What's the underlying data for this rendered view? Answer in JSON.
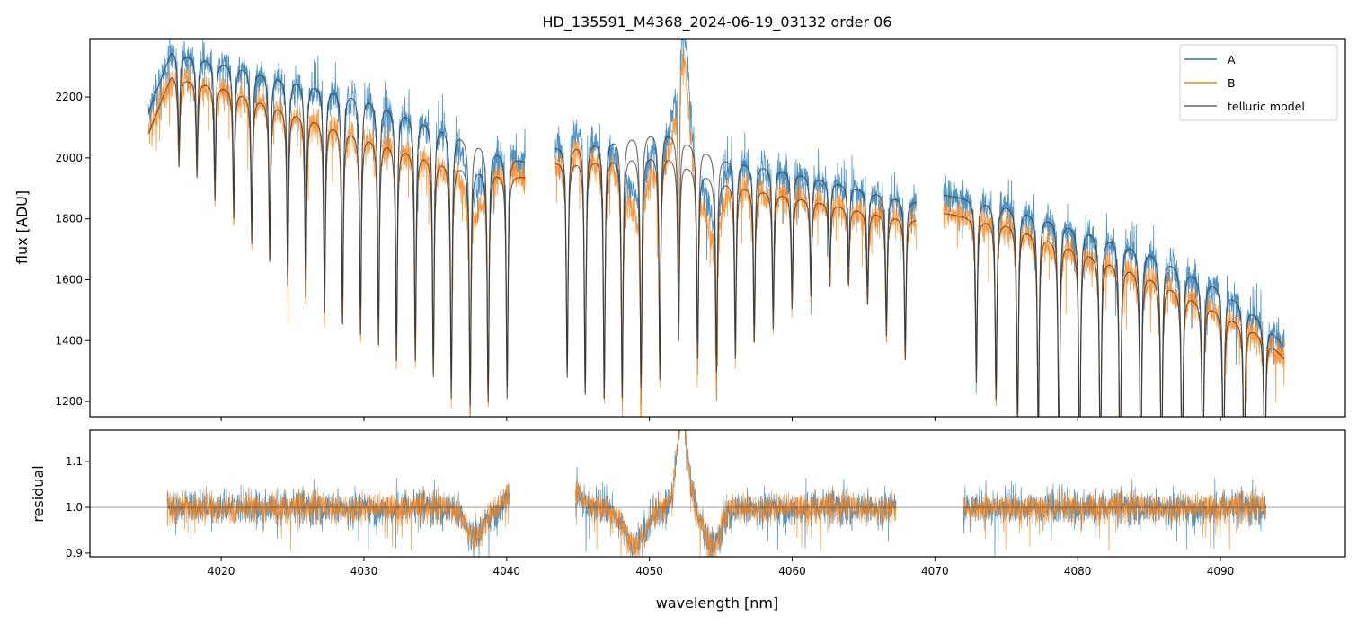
{
  "chart_data": {
    "type": "line",
    "title": "HD_135591_M4368_2024-06-19_03132  order 06",
    "xlabel": "wavelength [nm]",
    "xlim": [
      4010.8,
      4098.75
    ],
    "xticks": [
      4020,
      4030,
      4040,
      4050,
      4060,
      4070,
      4080,
      4090
    ],
    "panels": {
      "flux": {
        "ylabel": "flux [ADU]",
        "ylim": [
          1150,
          2392
        ],
        "yticks": [
          1200,
          1400,
          1600,
          1800,
          2000,
          2200
        ]
      },
      "residual": {
        "ylabel": "residual",
        "ylim": [
          0.892,
          1.169
        ],
        "yticks": [
          0.9,
          1.0,
          1.1
        ],
        "reference_line": 1.0
      }
    },
    "legend": {
      "placement": "top-right",
      "entries": [
        "A",
        "B",
        "telluric model"
      ]
    },
    "colors": {
      "A": "#1f77b4",
      "B": "#ff7f0e",
      "model": "#333333"
    },
    "segments": [
      {
        "range": [
          4014.9,
          4041.3
        ],
        "residual_range": [
          4016.2,
          4040.2
        ],
        "continuum_A": [
          [
            4014.9,
            2150
          ],
          [
            4016.5,
            2350
          ],
          [
            4020,
            2320
          ],
          [
            4030,
            2210
          ],
          [
            4036,
            2100
          ],
          [
            4041.3,
            1990
          ]
        ],
        "continuum_B": [
          [
            4014.9,
            2080
          ],
          [
            4016.5,
            2270
          ],
          [
            4020,
            2240
          ],
          [
            4030,
            2080
          ],
          [
            4036,
            1990
          ],
          [
            4041.3,
            1940
          ]
        ]
      },
      {
        "range": [
          4043.4,
          4068.7
        ],
        "residual_range": [
          4044.8,
          4067.3
        ],
        "continuum_A": [
          [
            4043.4,
            2040
          ],
          [
            4047,
            2070
          ],
          [
            4051,
            2100
          ],
          [
            4055,
            2010
          ],
          [
            4060,
            1960
          ],
          [
            4065,
            1900
          ],
          [
            4068.7,
            1860
          ]
        ],
        "continuum_B": [
          [
            4043.4,
            1990
          ],
          [
            4047,
            2010
          ],
          [
            4051,
            2020
          ],
          [
            4055,
            1930
          ],
          [
            4060,
            1880
          ],
          [
            4065,
            1830
          ],
          [
            4068.7,
            1800
          ]
        ]
      },
      {
        "range": [
          4070.6,
          4094.5
        ],
        "residual_range": [
          4072.0,
          4093.2
        ],
        "continuum_A": [
          [
            4070.6,
            1880
          ],
          [
            4075,
            1850
          ],
          [
            4080,
            1780
          ],
          [
            4085,
            1700
          ],
          [
            4090,
            1580
          ],
          [
            4093,
            1470
          ],
          [
            4094.5,
            1380
          ]
        ],
        "continuum_B": [
          [
            4070.6,
            1820
          ],
          [
            4075,
            1790
          ],
          [
            4080,
            1710
          ],
          [
            4085,
            1620
          ],
          [
            4090,
            1500
          ],
          [
            4093,
            1420
          ],
          [
            4094.5,
            1340
          ]
        ]
      }
    ],
    "telluric_lines": [
      {
        "x": 4017.04,
        "depth": 0.13
      },
      {
        "x": 4018.3,
        "depth": 0.14
      },
      {
        "x": 4019.56,
        "depth": 0.17
      },
      {
        "x": 4020.88,
        "depth": 0.19
      },
      {
        "x": 4022.14,
        "depth": 0.22
      },
      {
        "x": 4023.4,
        "depth": 0.24
      },
      {
        "x": 4024.66,
        "depth": 0.27
      },
      {
        "x": 4025.92,
        "depth": 0.28
      },
      {
        "x": 4027.24,
        "depth": 0.3
      },
      {
        "x": 4028.5,
        "depth": 0.31
      },
      {
        "x": 4029.76,
        "depth": 0.32
      },
      {
        "x": 4031.02,
        "depth": 0.33
      },
      {
        "x": 4032.28,
        "depth": 0.35
      },
      {
        "x": 4033.6,
        "depth": 0.34
      },
      {
        "x": 4034.86,
        "depth": 0.36
      },
      {
        "x": 4036.12,
        "depth": 0.39
      },
      {
        "x": 4037.44,
        "depth": 0.4
      },
      {
        "x": 4038.7,
        "depth": 0.39
      },
      {
        "x": 4040.03,
        "depth": 0.38
      },
      {
        "x": 4044.24,
        "depth": 0.36
      },
      {
        "x": 4045.5,
        "depth": 0.39
      },
      {
        "x": 4046.83,
        "depth": 0.4
      },
      {
        "x": 4048.09,
        "depth": 0.4
      },
      {
        "x": 4049.41,
        "depth": 0.38
      },
      {
        "x": 4050.73,
        "depth": 0.37
      },
      {
        "x": 4052.05,
        "depth": 0.3
      },
      {
        "x": 4053.38,
        "depth": 0.32
      },
      {
        "x": 4054.7,
        "depth": 0.33
      },
      {
        "x": 4056.02,
        "depth": 0.3
      },
      {
        "x": 4057.34,
        "depth": 0.27
      },
      {
        "x": 4058.67,
        "depth": 0.24
      },
      {
        "x": 4059.99,
        "depth": 0.2
      },
      {
        "x": 4061.31,
        "depth": 0.17
      },
      {
        "x": 4062.63,
        "depth": 0.15
      },
      {
        "x": 4063.95,
        "depth": 0.14
      },
      {
        "x": 4065.28,
        "depth": 0.17
      },
      {
        "x": 4066.6,
        "depth": 0.22
      },
      {
        "x": 4067.92,
        "depth": 0.26
      },
      {
        "x": 4072.9,
        "depth": 0.3
      },
      {
        "x": 4074.28,
        "depth": 0.33
      },
      {
        "x": 4075.79,
        "depth": 0.37
      },
      {
        "x": 4077.24,
        "depth": 0.4
      },
      {
        "x": 4078.69,
        "depth": 0.44
      },
      {
        "x": 4080.14,
        "depth": 0.46
      },
      {
        "x": 4081.59,
        "depth": 0.48
      },
      {
        "x": 4082.97,
        "depth": 0.48
      },
      {
        "x": 4084.42,
        "depth": 0.47
      },
      {
        "x": 4085.87,
        "depth": 0.46
      },
      {
        "x": 4087.32,
        "depth": 0.45
      },
      {
        "x": 4088.77,
        "depth": 0.43
      },
      {
        "x": 4090.21,
        "depth": 0.4
      },
      {
        "x": 4091.66,
        "depth": 0.37
      },
      {
        "x": 4093.11,
        "depth": 0.34
      }
    ],
    "residual_features": [
      {
        "center": 4037.8,
        "amp": -0.06,
        "width": 0.9
      },
      {
        "center": 4040.1,
        "amp": 0.03,
        "width": 0.4
      },
      {
        "center": 4045.0,
        "amp": 0.03,
        "width": 0.5
      },
      {
        "center": 4049.0,
        "amp": -0.08,
        "width": 1.1
      },
      {
        "center": 4052.3,
        "amp": 0.2,
        "width": 0.55
      },
      {
        "center": 4054.4,
        "amp": -0.09,
        "width": 0.8
      }
    ]
  }
}
